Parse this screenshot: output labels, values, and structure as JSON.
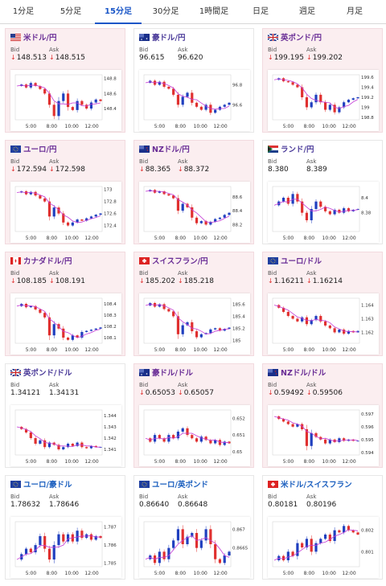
{
  "tabs": [
    {
      "label": "1分足",
      "active": false
    },
    {
      "label": "5分足",
      "active": false
    },
    {
      "label": "15分足",
      "active": true
    },
    {
      "label": "30分足",
      "active": false
    },
    {
      "label": "1時間足",
      "active": false
    },
    {
      "label": "日足",
      "active": false
    },
    {
      "label": "週足",
      "active": false
    },
    {
      "label": "月足",
      "active": false
    }
  ],
  "bid_label": "Bid",
  "ask_label": "Ask",
  "x_ticks": [
    "5:00",
    "8:00",
    "10:00",
    "12:00"
  ],
  "colors": {
    "up": "#1f3fbf",
    "down": "#e0302f",
    "ma": "#c43bd6",
    "accent": "#1a56c7"
  },
  "pairs": [
    {
      "name": "米ドル/円",
      "flag": "us",
      "bid": "148.513",
      "ask": "148.515",
      "down": true,
      "style": "pink",
      "yticks": [
        "148.8",
        "148.6",
        "148.4"
      ],
      "range": [
        148.25,
        148.85
      ],
      "path": [
        148.7,
        148.72,
        148.68,
        148.74,
        148.7,
        148.66,
        148.6,
        148.45,
        148.3,
        148.5,
        148.6,
        148.42,
        148.38,
        148.5,
        148.45,
        148.4,
        148.48,
        148.52,
        148.5
      ]
    },
    {
      "name": "豪ドル/円",
      "flag": "au",
      "bid": "96.615",
      "ask": "96.620",
      "down": false,
      "style": "white",
      "yticks": [
        "96.8",
        "96.6"
      ],
      "range": [
        96.45,
        96.9
      ],
      "path": [
        96.82,
        96.84,
        96.8,
        96.83,
        96.78,
        96.76,
        96.7,
        96.6,
        96.68,
        96.72,
        96.62,
        96.58,
        96.55,
        96.6,
        96.52,
        96.55,
        96.58,
        96.6,
        96.62
      ]
    },
    {
      "name": "英ポンド/円",
      "flag": "gb",
      "bid": "199.195",
      "ask": "199.202",
      "down": true,
      "style": "pink",
      "yticks": [
        "199.6",
        "199.4",
        "199.2",
        "199",
        "198.8"
      ],
      "range": [
        198.75,
        199.65
      ],
      "path": [
        199.55,
        199.58,
        199.52,
        199.5,
        199.45,
        199.4,
        199.2,
        199.0,
        199.1,
        199.25,
        199.1,
        198.95,
        199.05,
        198.9,
        199.0,
        199.1,
        199.15,
        199.18,
        199.2
      ]
    },
    {
      "name": "ユーロ/円",
      "flag": "eu",
      "bid": "172.594",
      "ask": "172.598",
      "down": true,
      "style": "pink",
      "yticks": [
        "173",
        "172.8",
        "172.6",
        "172.4"
      ],
      "range": [
        172.3,
        173.05
      ],
      "path": [
        172.95,
        172.97,
        172.92,
        172.96,
        172.9,
        172.85,
        172.8,
        172.55,
        172.7,
        172.6,
        172.45,
        172.4,
        172.45,
        172.5,
        172.48,
        172.52,
        172.55,
        172.58,
        172.6
      ]
    },
    {
      "name": "NZドル/円",
      "flag": "nz",
      "bid": "88.365",
      "ask": "88.372",
      "down": true,
      "style": "pink",
      "yticks": [
        "88.6",
        "88.4",
        "88.2"
      ],
      "range": [
        88.1,
        88.75
      ],
      "path": [
        88.68,
        88.7,
        88.66,
        88.68,
        88.64,
        88.62,
        88.58,
        88.4,
        88.5,
        88.45,
        88.3,
        88.22,
        88.25,
        88.2,
        88.24,
        88.28,
        88.3,
        88.34,
        88.37
      ]
    },
    {
      "name": "ランド/円",
      "flag": "za",
      "bid": "8.380",
      "ask": "8.389",
      "down": false,
      "style": "white",
      "yticks": [
        "8.4",
        "8.38"
      ],
      "range": [
        8.355,
        8.415
      ],
      "path": [
        8.39,
        8.395,
        8.4,
        8.392,
        8.405,
        8.395,
        8.38,
        8.37,
        8.385,
        8.395,
        8.388,
        8.382,
        8.378,
        8.384,
        8.38,
        8.386,
        8.382,
        8.384,
        8.385
      ]
    },
    {
      "name": "カナダドル/円",
      "flag": "ca",
      "bid": "108.185",
      "ask": "108.191",
      "down": true,
      "style": "pink",
      "yticks": [
        "108.4",
        "108.3",
        "108.2",
        "108.1"
      ],
      "range": [
        108.05,
        108.45
      ],
      "path": [
        108.38,
        108.4,
        108.37,
        108.38,
        108.35,
        108.32,
        108.28,
        108.12,
        108.22,
        108.18,
        108.1,
        108.08,
        108.12,
        108.1,
        108.15,
        108.16,
        108.17,
        108.18,
        108.19
      ]
    },
    {
      "name": "スイスフラン/円",
      "flag": "ch",
      "bid": "185.202",
      "ask": "185.218",
      "down": true,
      "style": "pink",
      "yticks": [
        "185.6",
        "185.4",
        "185.2",
        "185"
      ],
      "range": [
        184.95,
        185.7
      ],
      "path": [
        185.58,
        185.62,
        185.56,
        185.6,
        185.52,
        185.48,
        185.4,
        185.1,
        185.25,
        185.3,
        185.15,
        185.05,
        185.1,
        185.12,
        185.18,
        185.2,
        185.16,
        185.19,
        185.21
      ]
    },
    {
      "name": "ユーロ/ドル",
      "flag": "eu",
      "bid": "1.16211",
      "ask": "1.16214",
      "down": true,
      "style": "pink",
      "yticks": [
        "1.164",
        "1.163",
        "1.162"
      ],
      "range": [
        1.1612,
        1.1645
      ],
      "path": [
        1.164,
        1.1638,
        1.1635,
        1.1632,
        1.163,
        1.1628,
        1.1631,
        1.1626,
        1.1629,
        1.1632,
        1.1628,
        1.1625,
        1.1623,
        1.162,
        1.1622,
        1.1619,
        1.1621,
        1.162,
        1.1621
      ]
    },
    {
      "name": "英ポンド/ドル",
      "flag": "gb",
      "bid": "1.34121",
      "ask": "1.34131",
      "down": false,
      "style": "white",
      "yticks": [
        "1.344",
        "1.343",
        "1.342",
        "1.341"
      ],
      "range": [
        1.3405,
        1.3445
      ],
      "path": [
        1.343,
        1.3428,
        1.3425,
        1.342,
        1.3415,
        1.3418,
        1.3412,
        1.3416,
        1.3414,
        1.341,
        1.3412,
        1.3415,
        1.3413,
        1.3416,
        1.3412,
        1.3411,
        1.3413,
        1.3412,
        1.3412
      ]
    },
    {
      "name": "豪ドル/ドル",
      "flag": "au",
      "bid": "0.65053",
      "ask": "0.65057",
      "down": true,
      "style": "pink",
      "yticks": [
        "0.652",
        "0.651",
        "0.65"
      ],
      "range": [
        0.6498,
        0.6525
      ],
      "path": [
        0.6508,
        0.6506,
        0.651,
        0.6508,
        0.6506,
        0.651,
        0.6508,
        0.6512,
        0.6514,
        0.651,
        0.6508,
        0.6506,
        0.6509,
        0.6507,
        0.6505,
        0.6507,
        0.6504,
        0.6506,
        0.6505
      ]
    },
    {
      "name": "NZドル/ドル",
      "flag": "nz",
      "bid": "0.59492",
      "ask": "0.59506",
      "down": true,
      "style": "pink",
      "yticks": [
        "0.597",
        "0.596",
        "0.595",
        "0.594"
      ],
      "range": [
        0.5938,
        0.5973
      ],
      "path": [
        0.5968,
        0.5966,
        0.5964,
        0.5962,
        0.596,
        0.5962,
        0.5958,
        0.5945,
        0.5955,
        0.5952,
        0.595,
        0.5947,
        0.595,
        0.5948,
        0.5951,
        0.5949,
        0.595,
        0.5949,
        0.5949
      ]
    },
    {
      "name": "ユーロ/豪ドル",
      "flag": "eu",
      "bid": "1.78632",
      "ask": "1.78646",
      "down": false,
      "style": "white blue",
      "yticks": [
        "1.787",
        "1.786",
        "1.785"
      ],
      "range": [
        1.7848,
        1.7873
      ],
      "path": [
        1.7852,
        1.7855,
        1.7858,
        1.7856,
        1.786,
        1.7865,
        1.7858,
        1.7852,
        1.786,
        1.7866,
        1.7862,
        1.7866,
        1.7862,
        1.7868,
        1.7864,
        1.7866,
        1.7863,
        1.7865,
        1.7864
      ]
    },
    {
      "name": "ユーロ/英ポンド",
      "flag": "eu",
      "bid": "0.86640",
      "ask": "0.86648",
      "down": false,
      "style": "white blue",
      "yticks": [
        "0.867",
        "0.8665"
      ],
      "range": [
        0.866,
        0.8672
      ],
      "path": [
        0.8662,
        0.8663,
        0.8661,
        0.8664,
        0.8662,
        0.8665,
        0.8667,
        0.867,
        0.8666,
        0.8668,
        0.8669,
        0.8665,
        0.8667,
        0.867,
        0.8666,
        0.8662,
        0.8661,
        0.8663,
        0.8664
      ]
    },
    {
      "name": "米ドル/スイスフラン",
      "flag": "ch",
      "bid": "0.80181",
      "ask": "0.80196",
      "down": false,
      "style": "white blue",
      "yticks": [
        "0.802",
        "0.801"
      ],
      "range": [
        0.8003,
        0.8024
      ],
      "path": [
        0.8006,
        0.8008,
        0.8006,
        0.801,
        0.8008,
        0.8014,
        0.8012,
        0.8016,
        0.801,
        0.8014,
        0.8016,
        0.8018,
        0.8015,
        0.802,
        0.8019,
        0.8022,
        0.802,
        0.8019,
        0.8018
      ]
    }
  ]
}
